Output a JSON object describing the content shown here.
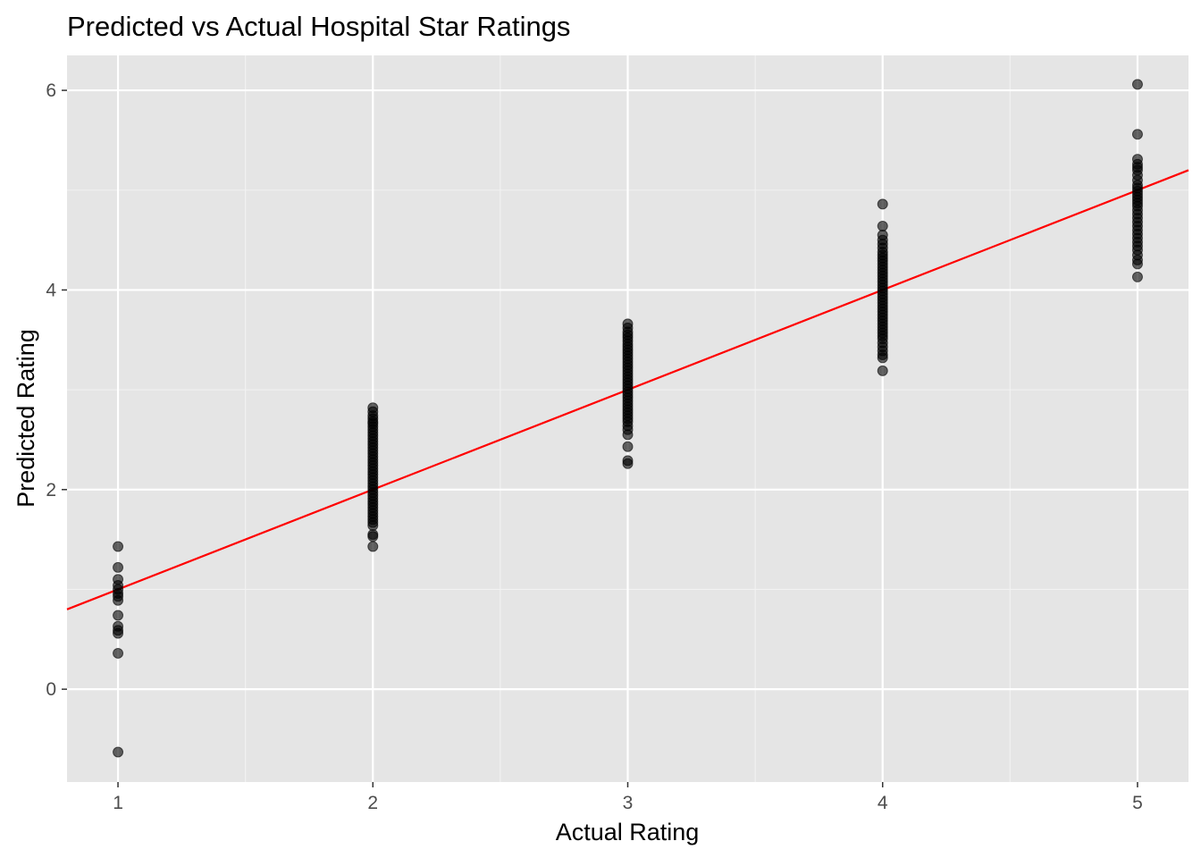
{
  "colors": {
    "panel_background": "#e5e5e5",
    "grid_major": "#ffffff",
    "grid_minor": "#f2f2f2",
    "point": "#000000",
    "point_opacity": 0.6,
    "reference_line": "#ff0000",
    "tick_text": "#4d4d4d",
    "tick_mark": "#333333"
  },
  "chart_data": {
    "type": "scatter",
    "title": "Predicted vs Actual Hospital Star Ratings",
    "xlabel": "Actual Rating",
    "ylabel": "Predicted Rating",
    "xlim": [
      0.8,
      5.2
    ],
    "ylim": [
      -0.93,
      6.35
    ],
    "x_ticks": [
      1,
      2,
      3,
      4,
      5
    ],
    "x_tick_labels": [
      "1",
      "2",
      "3",
      "4",
      "5"
    ],
    "y_ticks": [
      0,
      2,
      4,
      6
    ],
    "y_tick_labels": [
      "0",
      "2",
      "4",
      "6"
    ],
    "x_minor_ticks": [
      1.5,
      2.5,
      3.5,
      4.5
    ],
    "y_minor_ticks": [
      -1,
      1,
      3,
      5
    ],
    "grid": true,
    "legend": "none",
    "reference_line": {
      "slope": 1,
      "intercept": 0,
      "color": "#ff0000"
    },
    "series": [
      {
        "x": 1,
        "y": [
          1.43,
          1.22,
          1.1,
          1.04,
          1.0,
          0.96,
          0.93,
          0.89,
          0.74,
          0.63,
          0.59,
          0.56,
          0.36,
          -0.63
        ]
      },
      {
        "x": 2,
        "y": [
          2.82,
          2.78,
          2.74,
          2.71,
          2.68,
          2.66,
          2.63,
          2.6,
          2.57,
          2.54,
          2.51,
          2.48,
          2.45,
          2.42,
          2.39,
          2.36,
          2.33,
          2.3,
          2.27,
          2.24,
          2.21,
          2.18,
          2.15,
          2.12,
          2.09,
          2.06,
          2.03,
          2.0,
          1.97,
          1.94,
          1.91,
          1.88,
          1.85,
          1.82,
          1.79,
          1.76,
          1.73,
          1.7,
          1.67,
          1.64,
          1.55,
          1.53,
          1.43
        ]
      },
      {
        "x": 3,
        "y": [
          3.66,
          3.62,
          3.58,
          3.55,
          3.52,
          3.49,
          3.46,
          3.43,
          3.4,
          3.37,
          3.34,
          3.31,
          3.28,
          3.25,
          3.22,
          3.19,
          3.16,
          3.13,
          3.1,
          3.07,
          3.04,
          3.01,
          2.98,
          2.95,
          2.92,
          2.89,
          2.86,
          2.83,
          2.8,
          2.77,
          2.74,
          2.71,
          2.68,
          2.64,
          2.6,
          2.55,
          2.43,
          2.29,
          2.26
        ]
      },
      {
        "x": 4,
        "y": [
          4.86,
          4.64,
          4.55,
          4.5,
          4.46,
          4.42,
          4.38,
          4.35,
          4.32,
          4.29,
          4.26,
          4.23,
          4.2,
          4.17,
          4.14,
          4.11,
          4.08,
          4.05,
          4.02,
          3.99,
          3.96,
          3.93,
          3.9,
          3.87,
          3.84,
          3.81,
          3.78,
          3.75,
          3.72,
          3.69,
          3.66,
          3.63,
          3.6,
          3.57,
          3.54,
          3.51,
          3.47,
          3.43,
          3.39,
          3.35,
          3.32,
          3.19
        ]
      },
      {
        "x": 5,
        "y": [
          6.06,
          5.56,
          5.31,
          5.26,
          5.23,
          5.2,
          5.15,
          5.1,
          5.05,
          5.02,
          4.99,
          4.96,
          4.93,
          4.9,
          4.87,
          4.84,
          4.8,
          4.76,
          4.72,
          4.68,
          4.64,
          4.6,
          4.56,
          4.52,
          4.48,
          4.44,
          4.4,
          4.35,
          4.3,
          4.26,
          4.13
        ]
      }
    ]
  }
}
